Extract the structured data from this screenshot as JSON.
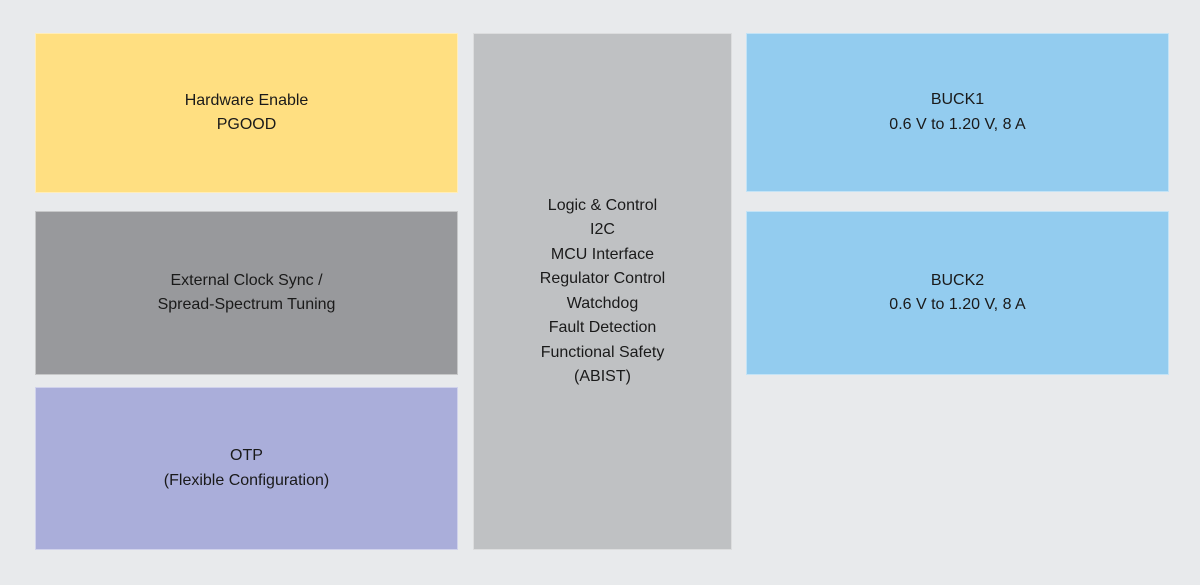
{
  "diagram": {
    "background_color": "#E8EAEC",
    "text_color": "#1A1A1A",
    "blocks": {
      "hardware_enable": {
        "color": "#FFDF81",
        "lines": [
          "Hardware Enable",
          "PGOOD"
        ]
      },
      "clock_sync": {
        "color": "#98999C",
        "lines": [
          "External Clock Sync /",
          "Spread-Spectrum Tuning"
        ]
      },
      "otp": {
        "color": "#AAAEDA",
        "lines": [
          "OTP",
          "(Flexible Configuration)"
        ]
      },
      "logic_control": {
        "color": "#BFC1C3",
        "lines": [
          "Logic & Control",
          "I2C",
          "MCU Interface",
          "Regulator Control",
          "Watchdog",
          "Fault Detection",
          "Functional Safety",
          "(ABIST)"
        ]
      },
      "buck1": {
        "color": "#93CCEF",
        "lines": [
          "BUCK1",
          "0.6 V to 1.20 V, 8 A"
        ]
      },
      "buck2": {
        "color": "#93CCEF",
        "lines": [
          "BUCK2",
          "0.6 V to 1.20 V, 8 A"
        ]
      }
    }
  }
}
